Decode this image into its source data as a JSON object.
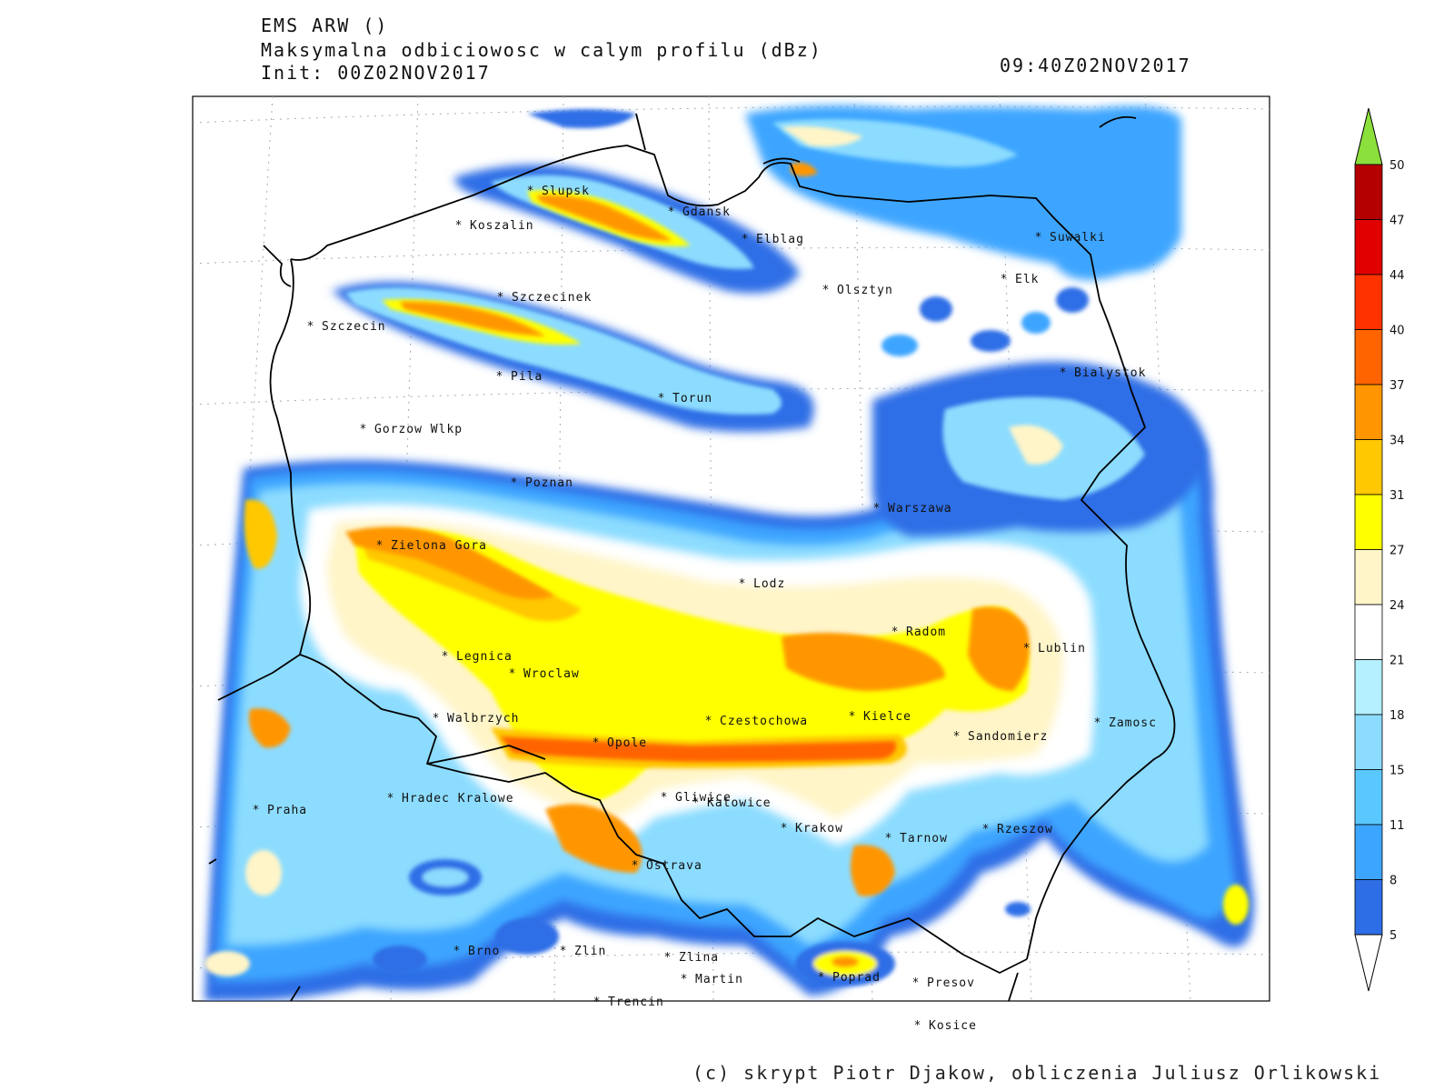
{
  "header": {
    "model": "EMS ARW ()",
    "field": "Maksymalna odbiciowosc w calym profilu (dBz)",
    "init": "Init: 00Z02NOV2017",
    "valid": "09:40Z02NOV2017"
  },
  "colorbar": {
    "labels": [
      "5",
      "8",
      "11",
      "15",
      "18",
      "21",
      "24",
      "27",
      "31",
      "34",
      "37",
      "40",
      "44",
      "47",
      "50"
    ],
    "colors": [
      "#0000b4",
      "#0a3cd2",
      "#2d6ee6",
      "#3ca5ff",
      "#5ac8ff",
      "#8cdcff",
      "#b4f0ff",
      "#ffffff",
      "#fff5c8",
      "#ffff00",
      "#ffc800",
      "#ff9600",
      "#ff6400",
      "#ff3200",
      "#e10000",
      "#b40000"
    ],
    "over_color": "#8ce03c"
  },
  "cities": [
    {
      "name": "Slupsk"
    },
    {
      "name": "Koszalin"
    },
    {
      "name": "Gdansk"
    },
    {
      "name": "Elblag"
    },
    {
      "name": "Suwalki"
    },
    {
      "name": "Elk"
    },
    {
      "name": "Szczecinek"
    },
    {
      "name": "Olsztyn"
    },
    {
      "name": "Szczecin"
    },
    {
      "name": "Pila"
    },
    {
      "name": "Torun"
    },
    {
      "name": "Bialystok"
    },
    {
      "name": "Gorzow Wlkp"
    },
    {
      "name": "Poznan"
    },
    {
      "name": "Warszawa"
    },
    {
      "name": "Zielona Gora"
    },
    {
      "name": "Lodz"
    },
    {
      "name": "Radom"
    },
    {
      "name": "Lublin"
    },
    {
      "name": "Legnica"
    },
    {
      "name": "Wroclaw"
    },
    {
      "name": "Walbrzych"
    },
    {
      "name": "Czestochowa"
    },
    {
      "name": "Kielce"
    },
    {
      "name": "Zamosc"
    },
    {
      "name": "Opole"
    },
    {
      "name": "Sandomierz"
    },
    {
      "name": "Praha"
    },
    {
      "name": "Hradec Kralowe"
    },
    {
      "name": "Gliwice"
    },
    {
      "name": "Katowice"
    },
    {
      "name": "Krakow"
    },
    {
      "name": "Tarnow"
    },
    {
      "name": "Rzeszow"
    },
    {
      "name": "Ostrava"
    },
    {
      "name": "Brno"
    },
    {
      "name": "Zlin"
    },
    {
      "name": "Zlina"
    },
    {
      "name": "Martin"
    },
    {
      "name": "Poprad"
    },
    {
      "name": "Presov"
    },
    {
      "name": "Trencin"
    },
    {
      "name": "Kosice"
    }
  ],
  "footer": {
    "credit": "(c) skrypt Piotr Djakow, obliczenia Juliusz Orlikowski"
  }
}
